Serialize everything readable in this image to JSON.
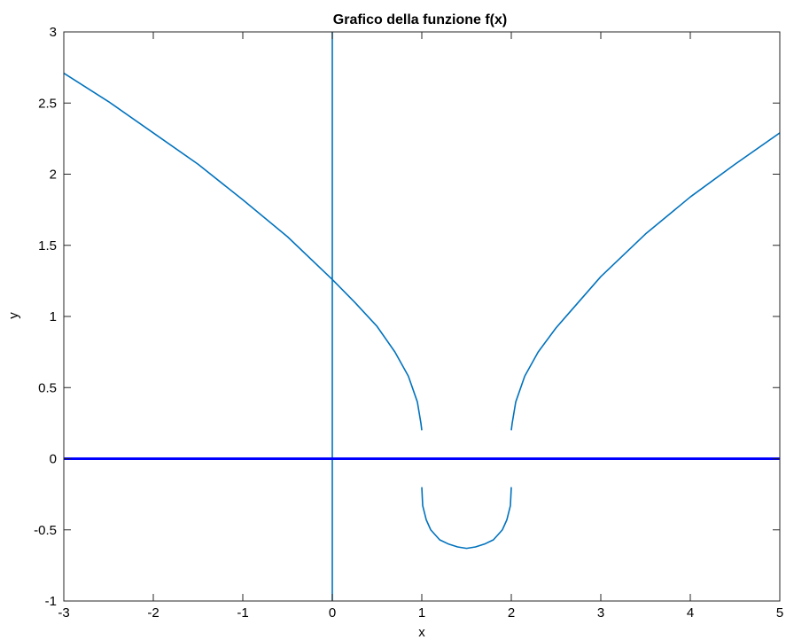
{
  "chart_data": {
    "type": "line",
    "title": "Grafico della funzione f(x)",
    "xlabel": "x",
    "ylabel": "y",
    "xlim": [
      -3,
      5
    ],
    "ylim": [
      -1,
      3
    ],
    "xticks": [
      -3,
      -2,
      -1,
      0,
      1,
      2,
      3,
      4,
      5
    ],
    "xtick_labels": [
      "-3",
      "-2",
      "-1",
      "0",
      "1",
      "2",
      "3",
      "4",
      "5"
    ],
    "yticks": [
      -1,
      -0.5,
      0,
      0.5,
      1,
      1.5,
      2,
      2.5,
      3
    ],
    "ytick_labels": [
      "-1",
      "-0.5",
      "0",
      "0.5",
      "1",
      "1.5",
      "2",
      "2.5",
      "3"
    ],
    "grid": false,
    "box": true,
    "series": [
      {
        "color": "#0072bd",
        "points": [
          [
            -3,
            2.71
          ],
          [
            -2.5,
            2.51
          ],
          [
            -2,
            2.29
          ],
          [
            -1.5,
            2.07
          ],
          [
            -1,
            1.82
          ],
          [
            -0.5,
            1.56
          ],
          [
            0,
            1.26
          ],
          [
            0.25,
            1.1
          ],
          [
            0.5,
            0.93
          ],
          [
            0.7,
            0.75
          ],
          [
            0.85,
            0.58
          ],
          [
            0.95,
            0.4
          ],
          [
            0.99,
            0.25
          ],
          [
            1.0,
            0.2
          ]
        ]
      },
      {
        "color": "#0072bd",
        "points": [
          [
            1.0,
            -0.2
          ],
          [
            1.01,
            -0.33
          ],
          [
            1.05,
            -0.43
          ],
          [
            1.1,
            -0.5
          ],
          [
            1.2,
            -0.57
          ],
          [
            1.3,
            -0.6
          ],
          [
            1.4,
            -0.62
          ],
          [
            1.5,
            -0.63
          ],
          [
            1.6,
            -0.62
          ],
          [
            1.7,
            -0.6
          ],
          [
            1.8,
            -0.57
          ],
          [
            1.9,
            -0.5
          ],
          [
            1.95,
            -0.43
          ],
          [
            1.99,
            -0.33
          ],
          [
            2.0,
            -0.2
          ]
        ]
      },
      {
        "color": "#0072bd",
        "points": [
          [
            2.0,
            0.2
          ],
          [
            2.01,
            0.25
          ],
          [
            2.05,
            0.4
          ],
          [
            2.15,
            0.58
          ],
          [
            2.3,
            0.75
          ],
          [
            2.5,
            0.92
          ],
          [
            3,
            1.28
          ],
          [
            3.5,
            1.58
          ],
          [
            4,
            1.84
          ],
          [
            4.5,
            2.07
          ],
          [
            5,
            2.29
          ]
        ]
      },
      {
        "color": "#0072bd",
        "points": [
          [
            0,
            -1
          ],
          [
            0,
            3
          ]
        ]
      },
      {
        "color": "#0000ff",
        "thick": true,
        "points": [
          [
            -3,
            0
          ],
          [
            5,
            0
          ]
        ]
      }
    ]
  }
}
